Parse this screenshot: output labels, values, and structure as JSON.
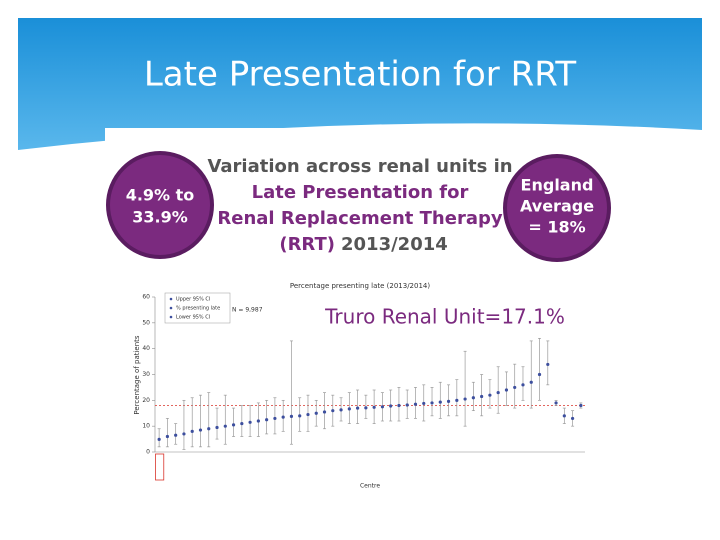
{
  "slide_title": "Late Presentation for RRT",
  "banner": {
    "range_1": "4.9% to",
    "range_2": "33.9%",
    "heading_1": "Variation across renal units in",
    "heading_2": "Late Presentation for",
    "heading_3": "Renal Replacement Therapy",
    "heading_4a": "(RRT)",
    "heading_4b": "2013/2014",
    "average_1": "England",
    "average_2": "Average",
    "average_3": "= 18%"
  },
  "chart_data": {
    "type": "errorbar",
    "title": "Percentage presenting late (2013/2014)",
    "annotation": "Truro Renal Unit=17.1%",
    "n_label": "N = 9,987",
    "ylabel": "Percentage of patients",
    "xlabel": "Centre",
    "ylim": [
      0,
      60
    ],
    "yticks": [
      0,
      10,
      20,
      30,
      40,
      50,
      60
    ],
    "reference_line": 18,
    "reference_color": "#d9342b",
    "categories": [
      null,
      null,
      null,
      null,
      null,
      null,
      null,
      null,
      null,
      null,
      null,
      null,
      null,
      null,
      null,
      null,
      null,
      null,
      null,
      null,
      null,
      null,
      null,
      null,
      null,
      null,
      null,
      null,
      null,
      null,
      null,
      null,
      null,
      null,
      null,
      null,
      null,
      null,
      null,
      null,
      null,
      null,
      null,
      null,
      null,
      null,
      null,
      null,
      null,
      null,
      null,
      null
    ],
    "series": [
      {
        "name": "% presenting late",
        "color": "#3d4f9e",
        "values": [
          4.9,
          6,
          6.5,
          7,
          8,
          8.5,
          9,
          9.5,
          10,
          10.5,
          11,
          11.5,
          12,
          12.5,
          13,
          13.5,
          13.8,
          14,
          14.5,
          15,
          15.5,
          16,
          16.3,
          16.7,
          17,
          17.1,
          17.3,
          17.5,
          17.8,
          18,
          18.2,
          18.5,
          18.8,
          19,
          19.3,
          19.6,
          20,
          20.5,
          21,
          21.5,
          22,
          23,
          24,
          25,
          26,
          27,
          30,
          33.9,
          19,
          14,
          13,
          18
        ]
      }
    ],
    "upper": {
      "name": "Upper 95% CI",
      "values": [
        9,
        13,
        11,
        20,
        21,
        22,
        23,
        17,
        22,
        17,
        18,
        18,
        19,
        20,
        21,
        20,
        43,
        21,
        22,
        20,
        23,
        22,
        21,
        23,
        24,
        22,
        24,
        23,
        24,
        25,
        24,
        25,
        26,
        25,
        27,
        26,
        28,
        39,
        27,
        30,
        28,
        33,
        31,
        34,
        33,
        43,
        44,
        43,
        20,
        17,
        16,
        19
      ]
    },
    "lower": {
      "name": "Lower 95% CI",
      "values": [
        2,
        2,
        3,
        1,
        2,
        2,
        2,
        5,
        3,
        6,
        6,
        6,
        6,
        7,
        7,
        8,
        3,
        8,
        8,
        10,
        9,
        10,
        12,
        11,
        11,
        13,
        11,
        12,
        12,
        12,
        13,
        13,
        12,
        14,
        13,
        14,
        14,
        10,
        16,
        14,
        17,
        15,
        18,
        17,
        20,
        17,
        20,
        26,
        18,
        11,
        10,
        17
      ]
    }
  }
}
